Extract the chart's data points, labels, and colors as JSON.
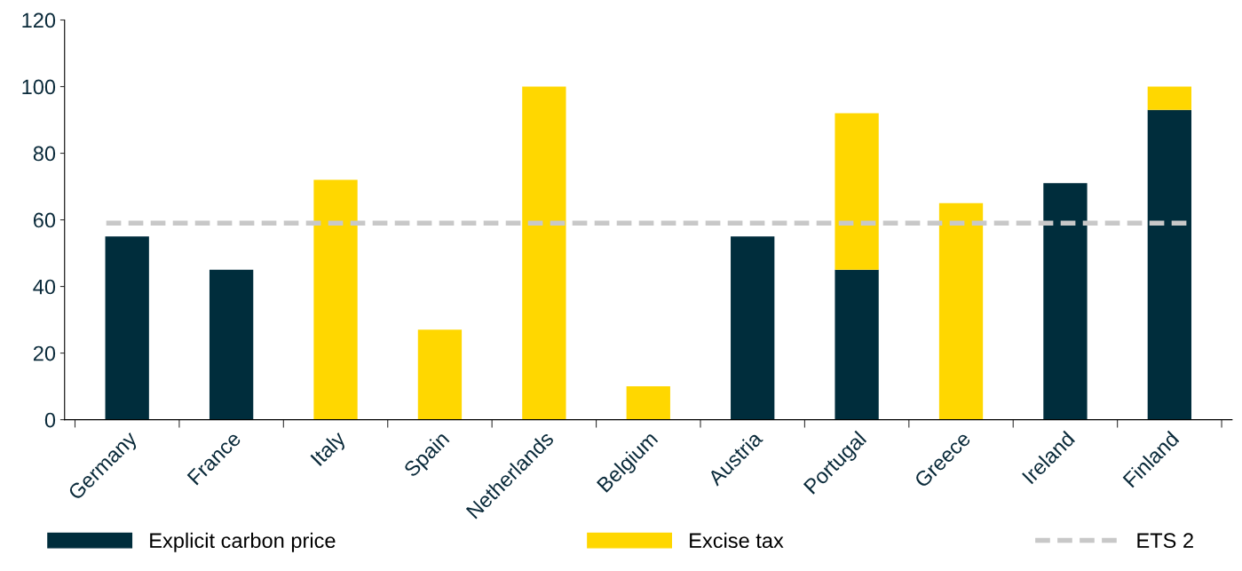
{
  "chart_data": {
    "type": "bar",
    "stacked": true,
    "categories": [
      "Germany",
      "France",
      "Italy",
      "Spain",
      "Netherlands",
      "Belgium",
      "Austria",
      "Portugal",
      "Greece",
      "Ireland",
      "Finland"
    ],
    "series": [
      {
        "name": "Explicit carbon price",
        "color": "#002d3c",
        "values": [
          55,
          45,
          0,
          0,
          0,
          0,
          55,
          45,
          0,
          71,
          93
        ]
      },
      {
        "name": "Excise tax",
        "color": "#ffd700",
        "values": [
          0,
          0,
          72,
          27,
          100,
          10,
          0,
          47,
          65,
          0,
          7
        ]
      }
    ],
    "ref_lines": [
      {
        "axis": "y",
        "value": 59,
        "label": "ETS 2",
        "color": "#c8c8c8",
        "line_style": "dashed"
      }
    ],
    "ylim": [
      0,
      120
    ],
    "yticks": [
      0,
      20,
      40,
      60,
      80,
      100,
      120
    ],
    "grid": false,
    "legend": "bottom"
  }
}
